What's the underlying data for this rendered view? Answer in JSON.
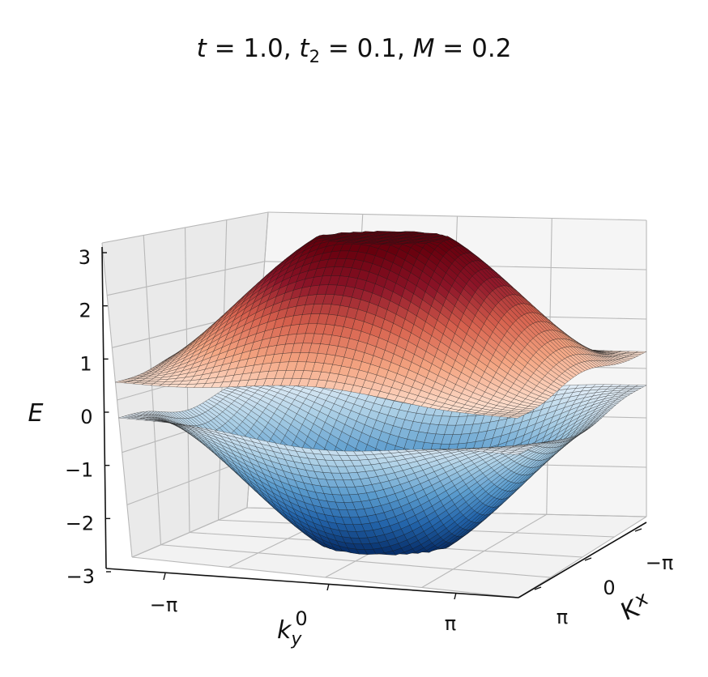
{
  "title_parts": {
    "t_sym": "t",
    "t_val": " = 1.0, ",
    "t2_sym": "t",
    "t2_sub": "2",
    "t2_val": " = 0.1, ",
    "m_sym": "M",
    "m_val": " = 0.2"
  },
  "chart_data": {
    "type": "surface3d",
    "title": "t = 1.0, t2 = 0.1, M = 0.2",
    "model": {
      "t": 1.0,
      "t2": 0.1,
      "M": 0.2
    },
    "xlabel": "kx",
    "ylabel": "ky",
    "zlabel": "E",
    "xlim": [
      "-π",
      "π"
    ],
    "ylim": [
      "-π",
      "π"
    ],
    "zlim": [
      -3,
      3
    ],
    "x_ticks": [
      "−π",
      "0",
      "π"
    ],
    "y_ticks": [
      "−π",
      "0",
      "π"
    ],
    "z_ticks": [
      "3",
      "2",
      "1",
      "0",
      "−1",
      "−2",
      "−3"
    ],
    "grid": true,
    "series": [
      {
        "name": "",
        "colormap": "Reds",
        "role": "upper band",
        "points": [
          {
            "kx": 0,
            "ky": 0,
            "E": 2.9
          },
          {
            "kx": -3.14,
            "ky": -3.14,
            "E": 2.0
          },
          {
            "kx": 3.14,
            "ky": 3.14,
            "E": 2.0
          },
          {
            "kx": 3.14,
            "ky": -3.14,
            "E": 0.4
          },
          {
            "kx": -3.14,
            "ky": 3.14,
            "E": 1.0
          }
        ]
      },
      {
        "name": "",
        "colormap": "Blues",
        "role": "lower band",
        "points": [
          {
            "kx": 0,
            "ky": 0,
            "E": -2.9
          },
          {
            "kx": -3.14,
            "ky": -3.14,
            "E": -2.0
          },
          {
            "kx": 3.14,
            "ky": 3.14,
            "E": -2.0
          },
          {
            "kx": 3.14,
            "ky": -3.14,
            "E": -0.4
          },
          {
            "kx": -3.14,
            "ky": 3.14,
            "E": -1.0
          }
        ]
      }
    ]
  }
}
